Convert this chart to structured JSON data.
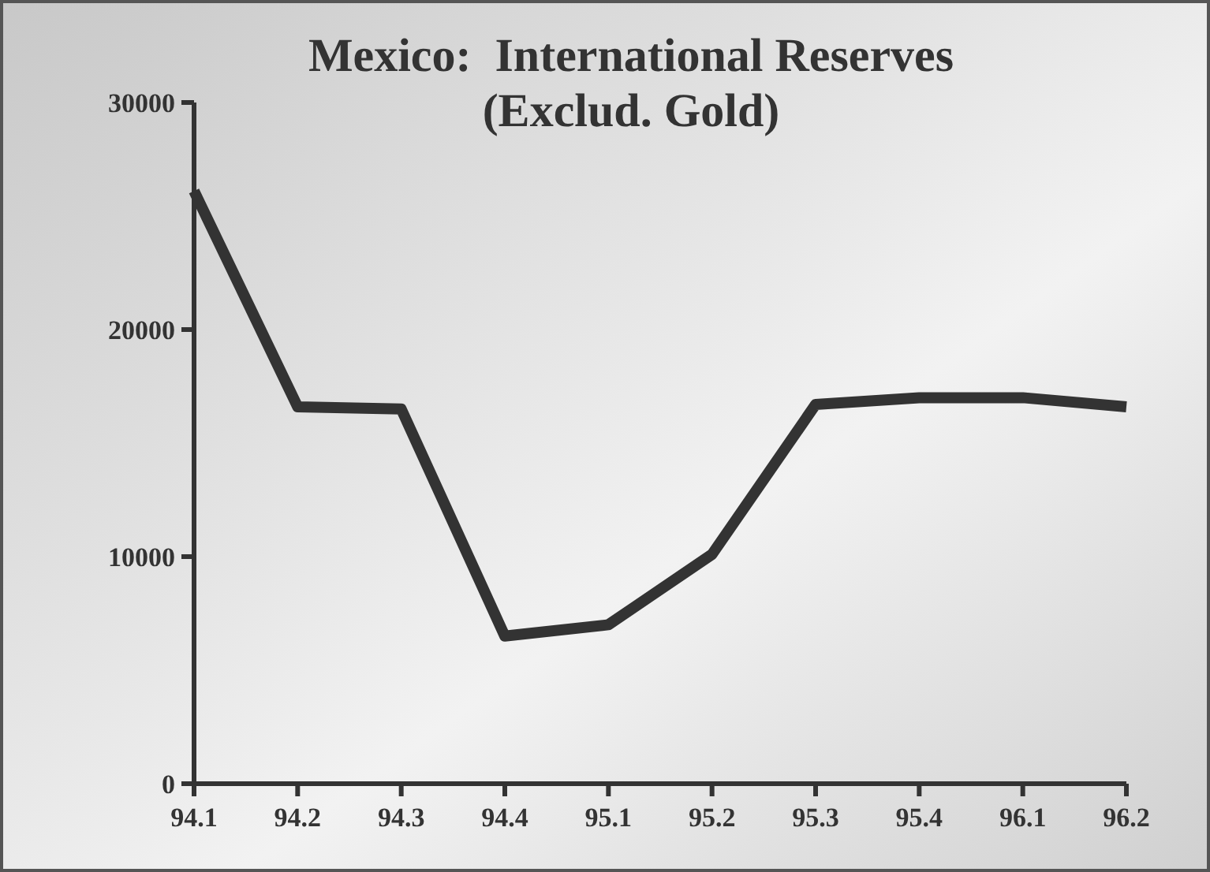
{
  "chart_data": {
    "type": "line",
    "title": "Mexico:  International Reserves",
    "subtitle": "(Exclud. Gold)",
    "categories": [
      "94.1",
      "94.2",
      "94.3",
      "94.4",
      "95.1",
      "95.2",
      "95.3",
      "95.4",
      "96.1",
      "96.2"
    ],
    "series": [
      {
        "color": "#333333",
        "values": [
          26100,
          16600,
          16500,
          6500,
          7000,
          10100,
          16700,
          17000,
          17000,
          16600
        ]
      }
    ],
    "ylim": [
      0,
      30000
    ],
    "yticks": [
      0,
      10000,
      20000,
      30000
    ],
    "grid": false,
    "marker": "none",
    "line_style": "solid"
  }
}
